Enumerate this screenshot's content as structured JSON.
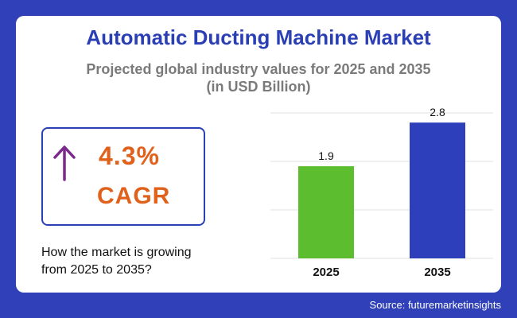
{
  "header": {
    "title": "Automatic Ducting Machine Market",
    "subtitle_line1": "Projected global industry values for 2025 and 2035",
    "subtitle_line2": "(in USD Billion)"
  },
  "cagr": {
    "value": "4.3%",
    "label": "CAGR",
    "icon": "arrow-up-icon",
    "color": "#e0611c"
  },
  "question": {
    "line1": "How the market is growing",
    "line2": "from 2025 to 2035?"
  },
  "source": "Source: futuremarketinsights",
  "colors": {
    "background": "#3040b8",
    "title": "#2b3fb5",
    "arrow": "#7b2a8c"
  },
  "chart_data": {
    "type": "bar",
    "categories": [
      "2025",
      "2035"
    ],
    "values": [
      1.9,
      2.8
    ],
    "data_labels": [
      "1.9",
      "2.8"
    ],
    "bar_colors": [
      "#5cbd2e",
      "#2d3fbb"
    ],
    "ylim": [
      0,
      3
    ],
    "grid": true
  }
}
